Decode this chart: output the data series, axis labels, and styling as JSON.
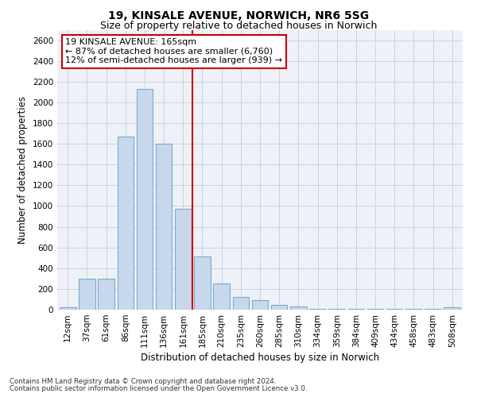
{
  "title1": "19, KINSALE AVENUE, NORWICH, NR6 5SG",
  "title2": "Size of property relative to detached houses in Norwich",
  "xlabel": "Distribution of detached houses by size in Norwich",
  "ylabel": "Number of detached properties",
  "bar_color": "#c8d8ec",
  "bar_edge_color": "#7aaac8",
  "grid_color": "#c8d4e0",
  "background_color": "#eef2f8",
  "annotation_box_color": "#cc0000",
  "vline_color": "#cc0000",
  "vline_x_index": 6,
  "categories": [
    "12sqm",
    "37sqm",
    "61sqm",
    "86sqm",
    "111sqm",
    "136sqm",
    "161sqm",
    "185sqm",
    "210sqm",
    "235sqm",
    "260sqm",
    "285sqm",
    "310sqm",
    "334sqm",
    "359sqm",
    "384sqm",
    "409sqm",
    "434sqm",
    "458sqm",
    "483sqm",
    "508sqm"
  ],
  "values": [
    20,
    300,
    300,
    1670,
    2130,
    1600,
    970,
    510,
    250,
    120,
    95,
    45,
    30,
    10,
    5,
    5,
    5,
    5,
    5,
    5,
    20
  ],
  "ylim": [
    0,
    2700
  ],
  "yticks": [
    0,
    200,
    400,
    600,
    800,
    1000,
    1200,
    1400,
    1600,
    1800,
    2000,
    2200,
    2400,
    2600
  ],
  "annotation_line1": "19 KINSALE AVENUE: 165sqm",
  "annotation_line2": "← 87% of detached houses are smaller (6,760)",
  "annotation_line3": "12% of semi-detached houses are larger (939) →",
  "footer1": "Contains HM Land Registry data © Crown copyright and database right 2024.",
  "footer2": "Contains public sector information licensed under the Open Government Licence v3.0."
}
